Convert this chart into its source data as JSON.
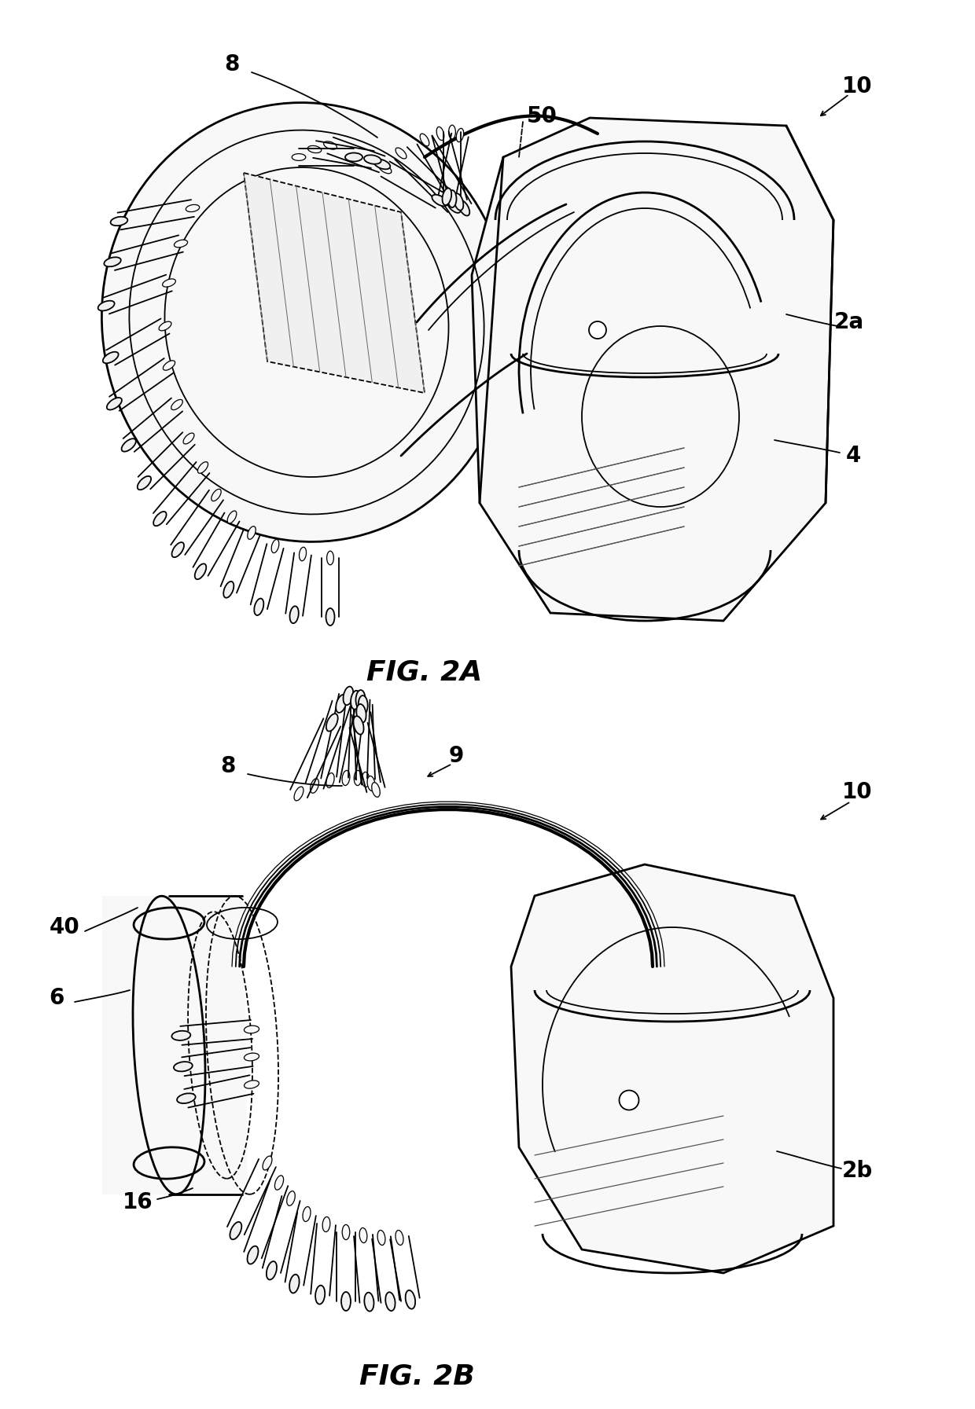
{
  "fig_width": 12.4,
  "fig_height": 17.93,
  "dpi": 100,
  "bg": "#ffffff",
  "lc": "#000000",
  "lw": 2.0,
  "tlw": 1.3,
  "flw": 0.8,
  "label_fs": 20,
  "caption_fs": 26,
  "fig2a_caption": "FIG. 2A",
  "fig2b_caption": "FIG. 2B"
}
